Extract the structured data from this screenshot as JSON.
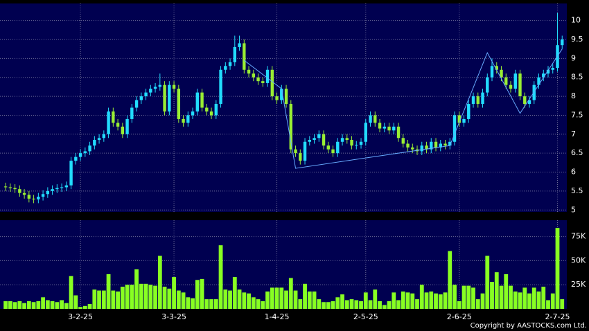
{
  "chart_data": {
    "type": "candlestick",
    "open": [
      5.62,
      5.6,
      5.58,
      5.55,
      5.45,
      5.4,
      5.3,
      5.28,
      5.35,
      5.42,
      5.5,
      5.55,
      5.58,
      5.6,
      5.65,
      6.3,
      6.4,
      6.5,
      6.55,
      6.7,
      6.85,
      6.9,
      7.0,
      7.6,
      7.3,
      7.2,
      7.0,
      7.4,
      7.7,
      7.9,
      8.0,
      8.1,
      8.2,
      8.25,
      8.3,
      7.6,
      8.3,
      8.2,
      7.4,
      7.3,
      7.5,
      7.6,
      8.1,
      7.7,
      7.6,
      7.5,
      7.8,
      8.7,
      8.8,
      8.9,
      9.3,
      9.4,
      8.7,
      8.6,
      8.5,
      8.4,
      8.35,
      8.7,
      8.0,
      7.9,
      8.2,
      7.8,
      6.6,
      6.5,
      6.3,
      6.8,
      6.85,
      6.9,
      7.0,
      6.7,
      6.6,
      6.5,
      6.8,
      6.9,
      6.85,
      6.7,
      6.72,
      6.8,
      7.3,
      7.5,
      7.3,
      7.15,
      7.2,
      7.1,
      7.2,
      6.9,
      6.75,
      6.65,
      6.6,
      6.55,
      6.7,
      6.6,
      6.8,
      6.65,
      6.75,
      6.7,
      6.8,
      7.5,
      7.3,
      7.4,
      7.8,
      8.0,
      7.8,
      8.1,
      8.5,
      8.8,
      8.7,
      8.5,
      8.3,
      8.2,
      8.6,
      8.0,
      7.8,
      7.9,
      8.3,
      8.5,
      8.6,
      8.7,
      8.75,
      9.35
    ],
    "high": [
      5.72,
      5.7,
      5.68,
      5.65,
      5.55,
      5.5,
      5.4,
      5.45,
      5.52,
      5.6,
      5.65,
      5.68,
      5.7,
      5.75,
      6.4,
      6.5,
      6.6,
      6.65,
      6.8,
      6.95,
      7.0,
      7.1,
      7.7,
      7.7,
      7.4,
      7.3,
      7.5,
      7.8,
      8.0,
      8.1,
      8.2,
      8.3,
      8.35,
      8.6,
      8.4,
      8.4,
      8.4,
      8.3,
      7.5,
      7.6,
      7.7,
      8.2,
      8.2,
      7.8,
      7.7,
      7.9,
      8.8,
      8.9,
      9.0,
      9.6,
      9.6,
      9.5,
      8.8,
      8.7,
      8.6,
      8.5,
      8.8,
      8.8,
      8.1,
      8.3,
      8.3,
      7.9,
      6.7,
      6.6,
      6.9,
      6.95,
      7.0,
      7.1,
      7.1,
      6.8,
      6.7,
      6.9,
      7.0,
      7.0,
      6.95,
      6.82,
      6.9,
      7.4,
      7.6,
      7.6,
      7.4,
      7.3,
      7.3,
      7.3,
      7.3,
      7.0,
      6.85,
      6.75,
      6.7,
      6.8,
      6.8,
      6.9,
      6.9,
      6.85,
      6.85,
      6.9,
      7.6,
      7.6,
      7.5,
      7.9,
      8.1,
      8.1,
      8.2,
      8.6,
      9.0,
      8.9,
      8.8,
      8.6,
      8.4,
      8.7,
      8.7,
      8.1,
      8.0,
      8.4,
      8.6,
      8.7,
      8.8,
      8.85,
      10.2,
      9.6
    ],
    "low": [
      5.5,
      5.48,
      5.45,
      5.35,
      5.3,
      5.2,
      5.18,
      5.18,
      5.25,
      5.32,
      5.4,
      5.45,
      5.48,
      5.5,
      5.55,
      6.2,
      6.3,
      6.4,
      6.45,
      6.6,
      6.75,
      6.8,
      6.9,
      7.2,
      7.1,
      6.9,
      6.9,
      7.3,
      7.6,
      7.8,
      7.9,
      8.0,
      8.1,
      8.15,
      7.5,
      7.5,
      8.1,
      7.3,
      7.2,
      7.2,
      7.4,
      7.5,
      7.6,
      7.5,
      7.4,
      7.4,
      7.7,
      8.6,
      8.7,
      8.8,
      9.2,
      8.6,
      8.5,
      8.4,
      8.3,
      8.25,
      8.25,
      7.9,
      7.8,
      7.8,
      7.7,
      6.5,
      6.4,
      6.2,
      6.2,
      6.7,
      6.75,
      6.8,
      6.6,
      6.5,
      6.4,
      6.4,
      6.7,
      6.75,
      6.6,
      6.6,
      6.62,
      6.7,
      7.2,
      7.2,
      7.05,
      7.05,
      7.0,
      7.0,
      6.8,
      6.65,
      6.55,
      6.5,
      6.45,
      6.45,
      6.5,
      6.5,
      6.55,
      6.55,
      6.6,
      6.6,
      6.7,
      7.2,
      7.2,
      7.3,
      7.7,
      7.7,
      7.7,
      8.0,
      8.4,
      8.6,
      8.4,
      8.2,
      8.1,
      8.1,
      7.9,
      7.7,
      7.7,
      7.8,
      8.2,
      8.4,
      8.5,
      8.6,
      8.65,
      9.25
    ],
    "close": [
      5.6,
      5.58,
      5.55,
      5.45,
      5.4,
      5.3,
      5.28,
      5.35,
      5.42,
      5.5,
      5.55,
      5.58,
      5.6,
      5.65,
      6.3,
      6.4,
      6.5,
      6.55,
      6.7,
      6.85,
      6.9,
      7.0,
      7.6,
      7.3,
      7.2,
      7.0,
      7.4,
      7.7,
      7.9,
      8.0,
      8.1,
      8.2,
      8.25,
      8.3,
      7.6,
      8.3,
      8.2,
      7.4,
      7.3,
      7.5,
      7.6,
      8.1,
      7.7,
      7.6,
      7.5,
      7.8,
      8.7,
      8.8,
      8.9,
      9.3,
      9.4,
      8.7,
      8.6,
      8.5,
      8.4,
      8.35,
      8.7,
      8.0,
      7.9,
      8.2,
      7.8,
      6.6,
      6.5,
      6.3,
      6.8,
      6.85,
      6.9,
      7.0,
      6.7,
      6.6,
      6.5,
      6.8,
      6.9,
      6.85,
      6.7,
      6.72,
      6.8,
      7.3,
      7.5,
      7.3,
      7.15,
      7.2,
      7.1,
      7.2,
      6.9,
      6.75,
      6.65,
      6.6,
      6.55,
      6.7,
      6.6,
      6.8,
      6.65,
      6.75,
      6.7,
      6.8,
      7.5,
      7.3,
      7.4,
      7.8,
      8.0,
      7.8,
      8.1,
      8.5,
      8.8,
      8.7,
      8.5,
      8.3,
      8.2,
      8.6,
      8.0,
      7.8,
      7.9,
      8.3,
      8.5,
      8.6,
      8.7,
      8.75,
      9.35,
      9.5
    ],
    "up_color": "#22ddff",
    "down_color": "#99ee33",
    "xlim": [
      -1.2,
      120
    ],
    "xticks": [
      {
        "value": 16,
        "label": "3-2-25"
      },
      {
        "value": 36,
        "label": "3-3-25"
      },
      {
        "value": 58,
        "label": "1-4-25"
      },
      {
        "value": 77,
        "label": "2-5-25"
      },
      {
        "value": 97,
        "label": "2-6-25"
      },
      {
        "value": 118,
        "label": "2-7-25"
      }
    ],
    "ylim": [
      4.95,
      10.45
    ],
    "yticks": [
      5,
      5.5,
      6,
      6.5,
      7,
      7.5,
      8,
      8.5,
      9,
      9.5,
      10
    ],
    "grid": true,
    "trend_line": {
      "color": "#66aaff",
      "x": [
        51,
        59,
        62,
        95,
        103,
        110,
        119
      ],
      "values": [
        8.95,
        8.2,
        6.1,
        6.7,
        9.15,
        7.55,
        9.25
      ]
    },
    "volume": {
      "type": "bar",
      "color": "#88ff22",
      "values": [
        8000,
        8000,
        7000,
        8000,
        6000,
        8000,
        7000,
        8000,
        12000,
        9000,
        8000,
        7000,
        9000,
        6000,
        34000,
        14000,
        2000,
        3000,
        5000,
        20000,
        19000,
        19000,
        36000,
        19000,
        18000,
        23000,
        25000,
        25000,
        41000,
        26000,
        26000,
        25000,
        24000,
        55000,
        23000,
        21000,
        33000,
        19000,
        17000,
        12000,
        11000,
        30000,
        31000,
        10000,
        10000,
        10000,
        66000,
        20000,
        19000,
        33000,
        20000,
        17000,
        16000,
        12000,
        10000,
        8000,
        18000,
        22000,
        22000,
        22000,
        19000,
        32000,
        19000,
        10000,
        26000,
        18000,
        18000,
        10000,
        7000,
        7000,
        8000,
        12000,
        15000,
        9000,
        10000,
        9000,
        8000,
        17000,
        9000,
        20000,
        8000,
        4000,
        8000,
        17000,
        9000,
        18000,
        17000,
        16000,
        10000,
        25000,
        17000,
        18000,
        16000,
        15000,
        17000,
        60000,
        25000,
        8000,
        24000,
        24000,
        22000,
        10000,
        16000,
        55000,
        28000,
        38000,
        24000,
        36000,
        24000,
        18000,
        17000,
        22000,
        16000,
        22000,
        18000,
        23000,
        9000,
        16000,
        84000,
        10000
      ],
      "ylim": [
        0,
        92000
      ],
      "yticks": [
        {
          "value": 25000,
          "label": "25K"
        },
        {
          "value": 50000,
          "label": "50K"
        },
        {
          "value": 75000,
          "label": "75K"
        }
      ]
    }
  },
  "footer": "Copyright by AASTOCKS.com Ltd."
}
